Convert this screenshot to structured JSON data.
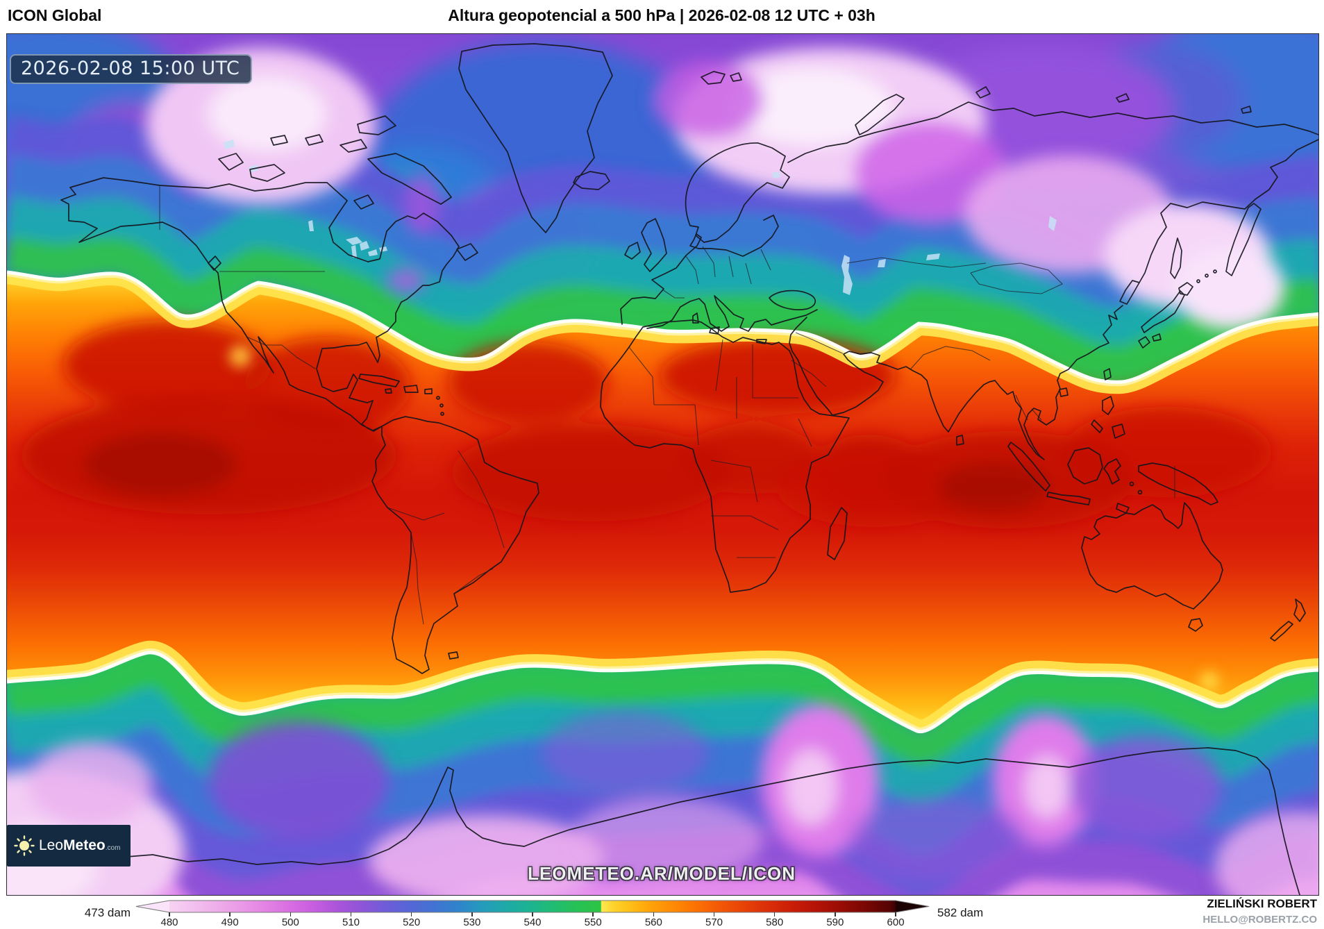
{
  "header": {
    "model": "ICON Global",
    "title": "Altura geopotencial a 500 hPa | 2026-02-08 12 UTC + 03h"
  },
  "map": {
    "timestamp_badge": "2026-02-08 15:00 UTC",
    "watermark": "LEOMETEO.AR/MODEL/ICON",
    "variable": "Altura geopotencial a 500 hPa",
    "logo": {
      "prefix": "Leo",
      "name": "Meteo",
      "tld": ".com",
      "icon": "sun-icon"
    }
  },
  "colorbar": {
    "unit": "dam",
    "min_label": "473 dam",
    "max_label": "582 dam",
    "ticks": [
      "480",
      "490",
      "500",
      "510",
      "520",
      "530",
      "540",
      "550",
      "560",
      "570",
      "580",
      "590",
      "600"
    ]
  },
  "credits": {
    "author": "ZIELIŃSKI ROBERT",
    "contact": "HELLO@ROBERTZ.CO"
  },
  "colors": {
    "badge_bg": "#1b2f45",
    "logo_bg": "#132a40",
    "low_extreme": "#f7d3f3",
    "high_extreme": "#3a0203",
    "jet_contour": "#ffffff",
    "green_band": "#2dc24e",
    "teal_band": "#1daab0",
    "blue_band": "#3b78d4",
    "violet_band": "#8a4fd6",
    "pink_band": "#e18aec",
    "orange_band": "#ff9a0a",
    "red_core": "#c91306"
  }
}
